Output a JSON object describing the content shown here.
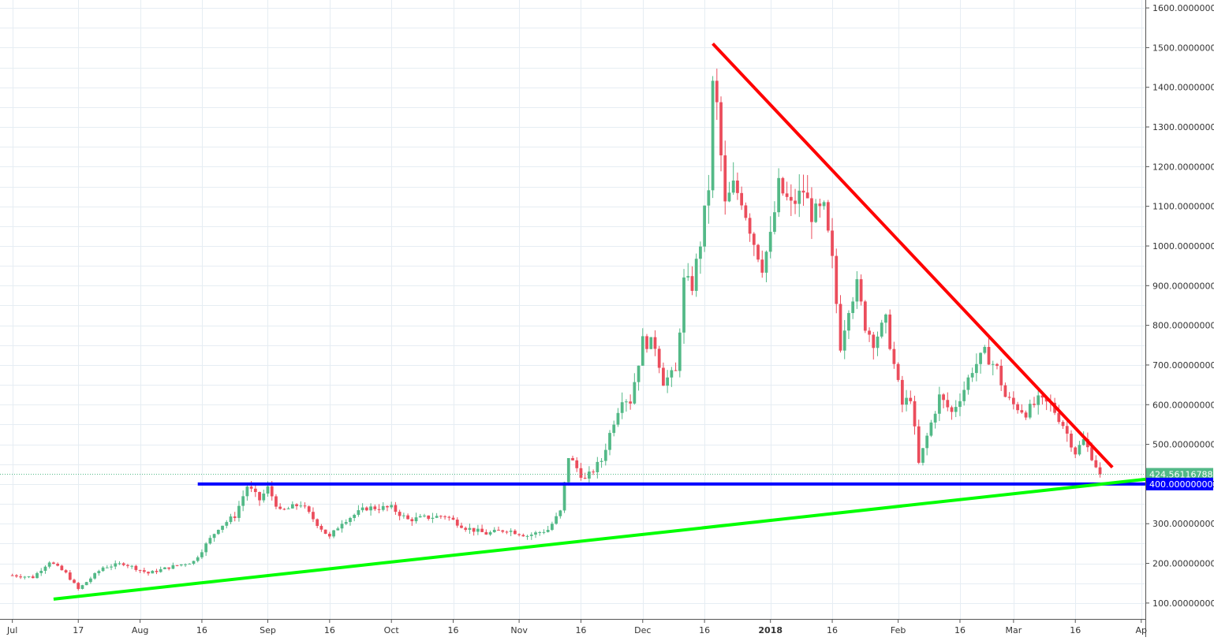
{
  "chart_data": {
    "type": "candlestick",
    "price_axis": {
      "min": 60,
      "max": 1620,
      "ticks": [
        "100.00000000",
        "200.00000000",
        "300.00000000",
        "400.00000000",
        "500.00000000",
        "600.00000000",
        "700.00000000",
        "800.00000000",
        "900.00000000",
        "1000.00000000",
        "1100.00000000",
        "1200.00000000",
        "1300.00000000",
        "1400.00000000",
        "1500.00000000",
        "1600.00000000"
      ],
      "tick_values": [
        100,
        200,
        300,
        400,
        500,
        600,
        700,
        800,
        900,
        1000,
        1100,
        1200,
        1300,
        1400,
        1500,
        1600
      ]
    },
    "time_axis": {
      "labels": [
        {
          "day": 0,
          "text": "Jul"
        },
        {
          "day": 16,
          "text": "17"
        },
        {
          "day": 31,
          "text": "Aug"
        },
        {
          "day": 46,
          "text": "16"
        },
        {
          "day": 62,
          "text": "Sep"
        },
        {
          "day": 77,
          "text": "16"
        },
        {
          "day": 92,
          "text": "Oct"
        },
        {
          "day": 107,
          "text": "16"
        },
        {
          "day": 123,
          "text": "Nov"
        },
        {
          "day": 138,
          "text": "16"
        },
        {
          "day": 153,
          "text": "Dec"
        },
        {
          "day": 168,
          "text": "16"
        },
        {
          "day": 184,
          "text": "2018"
        },
        {
          "day": 199,
          "text": "16"
        },
        {
          "day": 215,
          "text": "Feb"
        },
        {
          "day": 230,
          "text": "16"
        },
        {
          "day": 243,
          "text": "Mar"
        },
        {
          "day": 258,
          "text": "16"
        },
        {
          "day": 274,
          "text": "Ap"
        }
      ],
      "day_min": -3,
      "day_max": 275
    },
    "anchors": [
      {
        "d": 0,
        "p": 170
      },
      {
        "d": 5,
        "p": 165
      },
      {
        "d": 9,
        "p": 205
      },
      {
        "d": 13,
        "p": 175
      },
      {
        "d": 16,
        "p": 135
      },
      {
        "d": 22,
        "p": 190
      },
      {
        "d": 27,
        "p": 200
      },
      {
        "d": 33,
        "p": 175
      },
      {
        "d": 38,
        "p": 190
      },
      {
        "d": 44,
        "p": 205
      },
      {
        "d": 50,
        "p": 290
      },
      {
        "d": 54,
        "p": 320
      },
      {
        "d": 57,
        "p": 395
      },
      {
        "d": 60,
        "p": 360
      },
      {
        "d": 62,
        "p": 390
      },
      {
        "d": 65,
        "p": 330
      },
      {
        "d": 70,
        "p": 350
      },
      {
        "d": 74,
        "p": 300
      },
      {
        "d": 77,
        "p": 265
      },
      {
        "d": 80,
        "p": 305
      },
      {
        "d": 86,
        "p": 340
      },
      {
        "d": 92,
        "p": 340
      },
      {
        "d": 96,
        "p": 310
      },
      {
        "d": 100,
        "p": 315
      },
      {
        "d": 105,
        "p": 320
      },
      {
        "d": 110,
        "p": 290
      },
      {
        "d": 115,
        "p": 275
      },
      {
        "d": 120,
        "p": 285
      },
      {
        "d": 125,
        "p": 270
      },
      {
        "d": 130,
        "p": 285
      },
      {
        "d": 133,
        "p": 330
      },
      {
        "d": 135,
        "p": 470
      },
      {
        "d": 139,
        "p": 410
      },
      {
        "d": 143,
        "p": 460
      },
      {
        "d": 146,
        "p": 560
      },
      {
        "d": 148,
        "p": 620
      },
      {
        "d": 150,
        "p": 610
      },
      {
        "d": 153,
        "p": 760
      },
      {
        "d": 156,
        "p": 750
      },
      {
        "d": 158,
        "p": 660
      },
      {
        "d": 161,
        "p": 680
      },
      {
        "d": 163,
        "p": 910
      },
      {
        "d": 165,
        "p": 900
      },
      {
        "d": 167,
        "p": 1010
      },
      {
        "d": 169,
        "p": 1150
      },
      {
        "d": 170,
        "p": 1400
      },
      {
        "d": 171,
        "p": 1350
      },
      {
        "d": 173,
        "p": 1100
      },
      {
        "d": 175,
        "p": 1150
      },
      {
        "d": 177,
        "p": 1120
      },
      {
        "d": 180,
        "p": 1010
      },
      {
        "d": 182,
        "p": 950
      },
      {
        "d": 184,
        "p": 1020
      },
      {
        "d": 186,
        "p": 1150
      },
      {
        "d": 189,
        "p": 1100
      },
      {
        "d": 192,
        "p": 1140
      },
      {
        "d": 194,
        "p": 1080
      },
      {
        "d": 197,
        "p": 1090
      },
      {
        "d": 199,
        "p": 960
      },
      {
        "d": 201,
        "p": 750
      },
      {
        "d": 203,
        "p": 850
      },
      {
        "d": 205,
        "p": 900
      },
      {
        "d": 207,
        "p": 800
      },
      {
        "d": 209,
        "p": 760
      },
      {
        "d": 212,
        "p": 810
      },
      {
        "d": 214,
        "p": 700
      },
      {
        "d": 216,
        "p": 600
      },
      {
        "d": 218,
        "p": 620
      },
      {
        "d": 220,
        "p": 450
      },
      {
        "d": 222,
        "p": 520
      },
      {
        "d": 225,
        "p": 620
      },
      {
        "d": 228,
        "p": 580
      },
      {
        "d": 231,
        "p": 640
      },
      {
        "d": 233,
        "p": 690
      },
      {
        "d": 236,
        "p": 730
      },
      {
        "d": 239,
        "p": 690
      },
      {
        "d": 241,
        "p": 620
      },
      {
        "d": 243,
        "p": 600
      },
      {
        "d": 246,
        "p": 580
      },
      {
        "d": 249,
        "p": 610
      },
      {
        "d": 252,
        "p": 600
      },
      {
        "d": 255,
        "p": 550
      },
      {
        "d": 258,
        "p": 480
      },
      {
        "d": 260,
        "p": 510
      },
      {
        "d": 262,
        "p": 470
      },
      {
        "d": 264,
        "p": 424
      }
    ],
    "last_price": "424.56116788",
    "last_price_value": 424.56,
    "level_label": "400.00000000",
    "drawings": [
      {
        "kind": "support-horizontal",
        "color": "#0000ff",
        "from": {
          "d": 45,
          "p": 400
        },
        "to": {
          "d": 275,
          "p": 400
        }
      },
      {
        "kind": "trend-up",
        "color": "#00ff00",
        "from": {
          "d": 10,
          "p": 110
        },
        "to": {
          "d": 275,
          "p": 412
        }
      },
      {
        "kind": "trend-down",
        "color": "#ff0000",
        "from": {
          "d": 170,
          "p": 1510
        },
        "to": {
          "d": 267,
          "p": 442
        }
      }
    ],
    "colors": {
      "up": "#53b987",
      "down": "#eb4d5c",
      "grid": "#e6edf3",
      "axis": "#555555",
      "last_badge": "#53b987",
      "level_badge": "#0000ff"
    }
  }
}
